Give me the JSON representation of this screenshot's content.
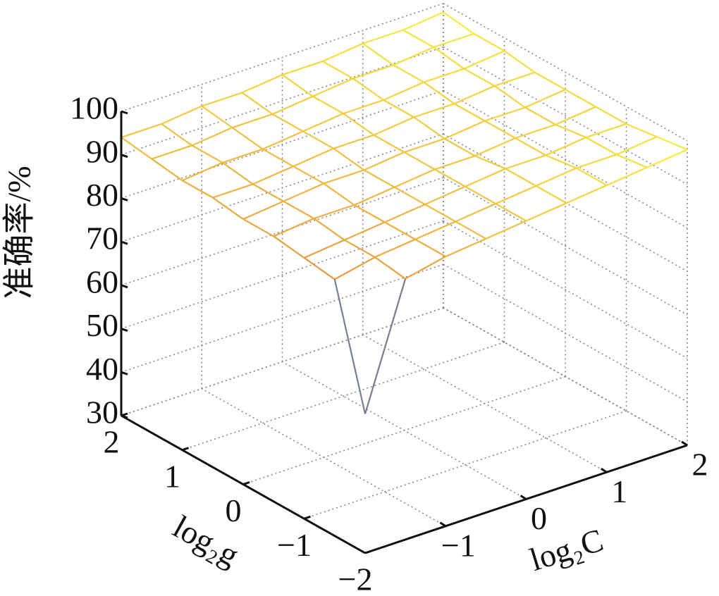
{
  "chart_data": {
    "type": "surface",
    "x_label": "log₂C",
    "y_label": "log₂g",
    "z_label": "准确率/%",
    "x": [
      -2,
      -1.5,
      -1,
      -0.5,
      0,
      0.5,
      1,
      1.5,
      2
    ],
    "y": [
      -2,
      -1.5,
      -1,
      -0.5,
      0,
      0.5,
      1,
      1.5,
      2
    ],
    "z": [
      [
        62,
        90,
        92,
        93,
        94,
        95,
        96,
        97,
        98
      ],
      [
        89,
        91,
        92,
        93,
        94,
        95,
        96,
        96,
        97
      ],
      [
        90,
        91,
        92,
        93,
        94,
        95,
        95,
        96,
        96
      ],
      [
        91,
        92,
        92,
        93,
        94,
        94,
        95,
        95,
        96
      ],
      [
        91,
        92,
        93,
        93,
        94,
        94,
        95,
        95,
        96
      ],
      [
        92,
        92,
        93,
        94,
        94,
        95,
        95,
        96,
        96
      ],
      [
        92,
        93,
        93,
        94,
        95,
        95,
        96,
        96,
        97
      ],
      [
        93,
        93,
        94,
        94,
        95,
        96,
        96,
        97,
        97
      ],
      [
        94,
        94,
        95,
        95,
        96,
        96,
        97,
        97,
        98
      ]
    ],
    "xlim": [
      -2,
      2
    ],
    "ylim": [
      -2,
      2
    ],
    "zlim": [
      30,
      100
    ],
    "xticks": [
      {
        "value": -2,
        "label": "−2"
      },
      {
        "value": -1,
        "label": "−1"
      },
      0,
      1,
      2
    ],
    "yticks": [
      {
        "value": -2,
        "label": "−2"
      },
      {
        "value": -1,
        "label": "−1"
      },
      0,
      1,
      2
    ],
    "zticks": [
      30,
      40,
      50,
      60,
      70,
      80,
      90,
      100
    ],
    "grid": true,
    "colormap": [
      "#1030c0",
      "#30d0e0",
      "#c03050",
      "#e89040",
      "#f8f040"
    ]
  }
}
